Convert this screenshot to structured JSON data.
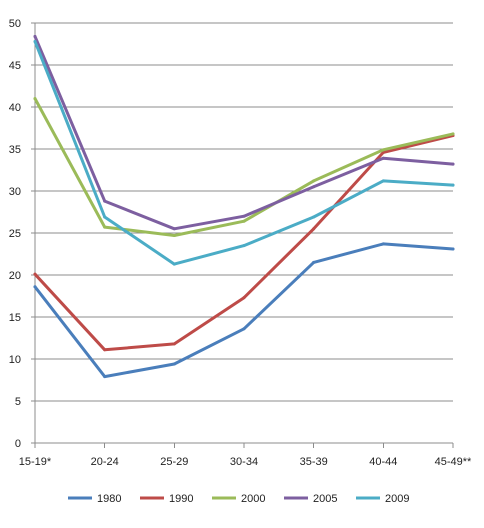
{
  "chart_data": {
    "type": "line",
    "title": "",
    "xlabel": "",
    "ylabel": "",
    "categories": [
      "15-19*",
      "20-24",
      "25-29",
      "30-34",
      "35-39",
      "40-44",
      "45-49**"
    ],
    "ylim": [
      0,
      50
    ],
    "yticks": [
      0,
      5,
      10,
      15,
      20,
      25,
      30,
      35,
      40,
      45,
      50
    ],
    "grid": "horizontal",
    "legend_position": "bottom",
    "series": [
      {
        "name": "1980",
        "color": "#4a7ebb",
        "values": [
          18.6,
          7.9,
          9.4,
          13.6,
          21.5,
          23.7,
          23.1
        ]
      },
      {
        "name": "1990",
        "color": "#be4b48",
        "values": [
          20.1,
          11.1,
          11.8,
          17.3,
          25.5,
          34.6,
          36.6
        ]
      },
      {
        "name": "2000",
        "color": "#9bbb59",
        "values": [
          41.0,
          25.7,
          24.7,
          26.4,
          31.2,
          34.9,
          36.8
        ]
      },
      {
        "name": "2005",
        "color": "#7d5fa0",
        "values": [
          48.4,
          28.8,
          25.5,
          27.0,
          30.5,
          33.9,
          33.2
        ]
      },
      {
        "name": "2009",
        "color": "#4bacc6",
        "values": [
          47.8,
          26.9,
          21.3,
          23.5,
          26.9,
          31.2,
          30.7
        ]
      }
    ]
  }
}
